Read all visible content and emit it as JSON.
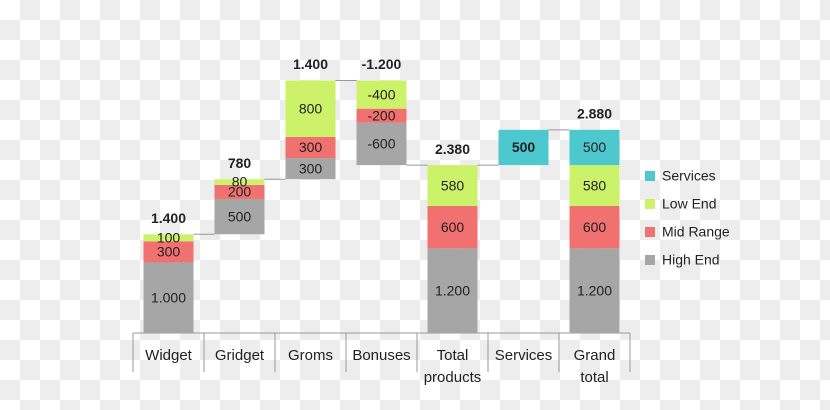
{
  "chart_data": {
    "type": "waterfall",
    "categories": [
      "Widget",
      "Gridget",
      "Groms",
      "Bonuses",
      "Total products",
      "Services",
      "Grand total"
    ],
    "totals": [
      false,
      false,
      false,
      false,
      true,
      false,
      true
    ],
    "total_values": [
      1400,
      780,
      1400,
      -1200,
      2380,
      null,
      2880
    ],
    "total_labels": [
      "1.400",
      "780",
      "1.400",
      "-1.200",
      "2.380",
      null,
      "2.880"
    ],
    "series": [
      {
        "name": "High End",
        "color": "#a6a6a6",
        "values": [
          1000,
          500,
          300,
          -600,
          1200,
          null,
          1200
        ],
        "value_labels": [
          "1.000",
          "500",
          "300",
          "-600",
          "1.200",
          null,
          "1.200"
        ]
      },
      {
        "name": "Mid Range",
        "color": "#f0716f",
        "values": [
          300,
          200,
          300,
          -200,
          600,
          null,
          600
        ]
      },
      {
        "name": "Low End",
        "color": "#ccf26a",
        "values": [
          100,
          80,
          800,
          -400,
          580,
          null,
          580
        ]
      },
      {
        "name": "Services",
        "color": "#4dc8cf",
        "values": [
          null,
          null,
          null,
          null,
          null,
          500,
          500
        ]
      }
    ],
    "ylim": [
      0,
      3700
    ],
    "legend": "right"
  }
}
